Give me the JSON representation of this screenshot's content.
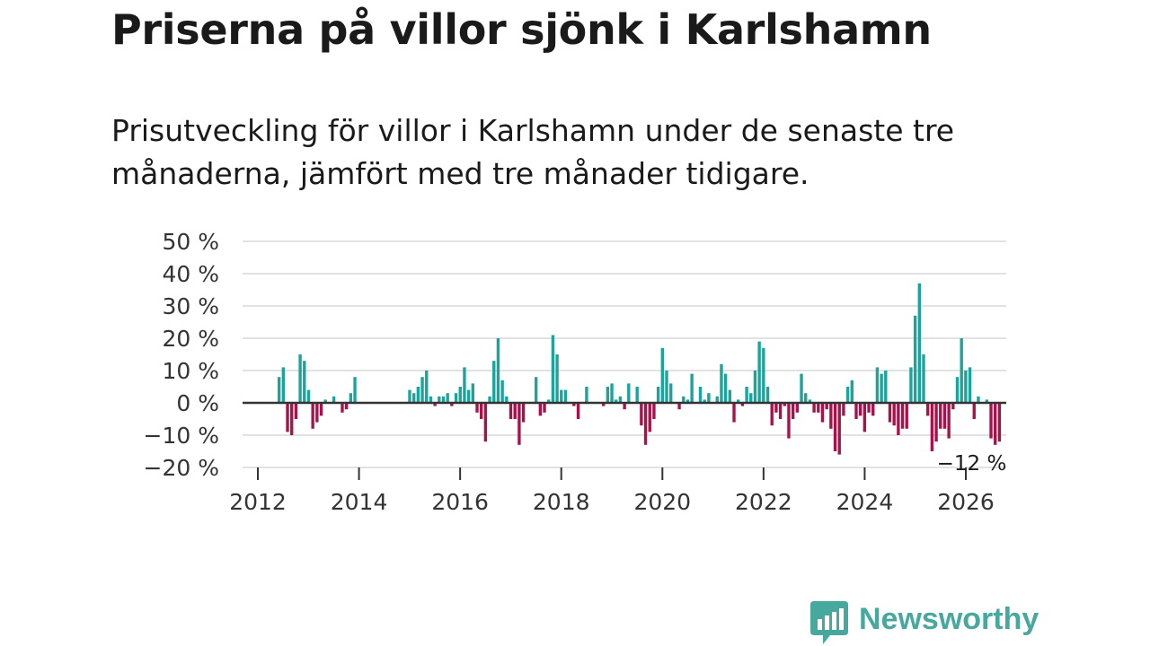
{
  "title": "Priserna på villor sjönk i Karlshamn",
  "subtitle": "Prisutveckling för villor i Karlshamn under de senaste tre månaderna, jämfört med tre månader tidigare.",
  "brand": {
    "name": "Newsworthy",
    "color": "#47a89d",
    "icon": "bar-chart-speech-bubble-icon"
  },
  "colors": {
    "positive": "#1ba39c",
    "negative": "#a6134b",
    "zero_line": "#333333",
    "grid": "#d9d9d9"
  },
  "chart_data": {
    "type": "bar",
    "title": "Priserna på villor sjönk i Karlshamn",
    "xlabel": "",
    "ylabel": "",
    "x_unit": "year",
    "ylim": [
      -20,
      50
    ],
    "y_ticks": [
      50,
      40,
      30,
      20,
      10,
      0,
      -10,
      -20
    ],
    "y_tick_labels": [
      "50 %",
      "40 %",
      "30 %",
      "20 %",
      "10 %",
      "0 %",
      "−10 %",
      "−20 %"
    ],
    "x_ticks": [
      2012,
      2014,
      2016,
      2018,
      2020,
      2022,
      2024,
      2026
    ],
    "x_tick_labels": [
      "2012",
      "2014",
      "2016",
      "2018",
      "2020",
      "2022",
      "2024",
      "2026"
    ],
    "grid": true,
    "annotation": {
      "label": "−12 %",
      "x": 2026.08,
      "value": -12
    },
    "series": [
      {
        "name": "Prisutveckling",
        "x_start": 2012.42,
        "x_step": 0.0833,
        "values": [
          8,
          11,
          -9,
          -10,
          -5,
          15,
          13,
          4,
          -8,
          -6,
          -4,
          1,
          0,
          2,
          0,
          -3,
          -2,
          3,
          8,
          0,
          0,
          0,
          0,
          0,
          0,
          0,
          0,
          0,
          0,
          0,
          0,
          4,
          3,
          5,
          8,
          10,
          2,
          -1,
          2,
          2,
          3,
          -1,
          3,
          5,
          11,
          4,
          6,
          -3,
          -5,
          -12,
          2,
          13,
          20,
          7,
          2,
          -5,
          -5,
          -13,
          -6,
          0,
          0,
          8,
          -4,
          -3,
          1,
          21,
          15,
          4,
          4,
          0,
          -1,
          -5,
          0,
          5,
          0,
          0,
          0,
          -1,
          5,
          6,
          1,
          2,
          -2,
          6,
          0,
          5,
          -7,
          -13,
          -9,
          -5,
          5,
          17,
          10,
          6,
          0,
          -2,
          2,
          1,
          9,
          0,
          5,
          1,
          3,
          0,
          2,
          12,
          9,
          4,
          -6,
          1,
          -1,
          5,
          3,
          10,
          19,
          17,
          5,
          -7,
          -3,
          -5,
          -1,
          -11,
          -5,
          -3,
          9,
          3,
          1,
          -3,
          -3,
          -6,
          -2,
          -8,
          -15,
          -16,
          -4,
          5,
          7,
          -5,
          -4,
          -9,
          -3,
          -4,
          11,
          9,
          10,
          -6,
          -7,
          -10,
          -8,
          -8,
          11,
          27,
          37,
          15,
          -4,
          -15,
          -12,
          -8,
          -8,
          -11,
          -2,
          8,
          20,
          10,
          11,
          -5,
          2,
          0,
          1,
          -11,
          -13,
          -12
        ]
      }
    ]
  }
}
